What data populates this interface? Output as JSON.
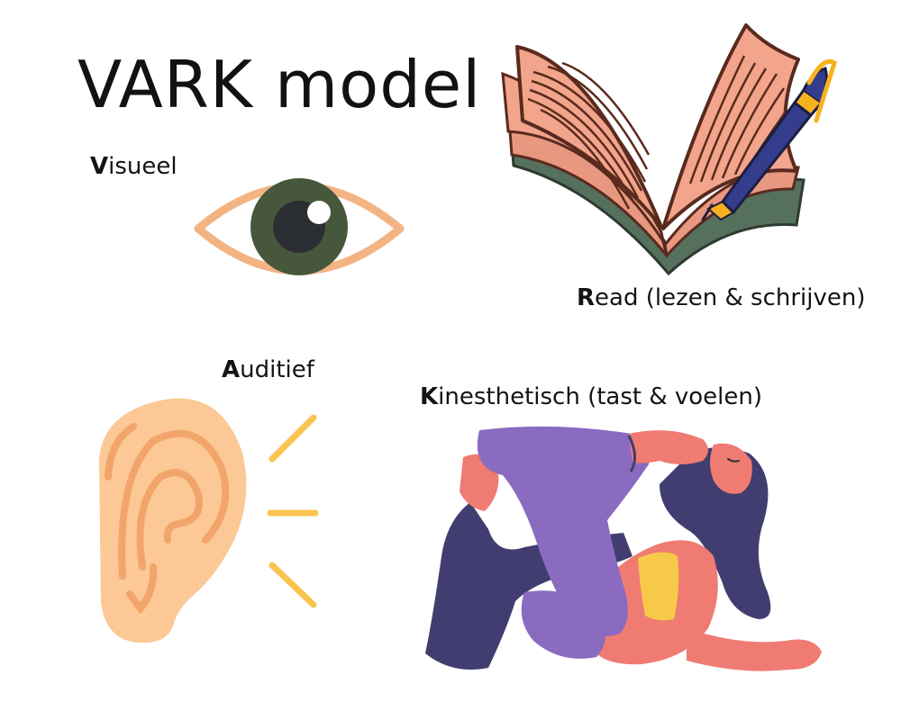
{
  "title": "VARK model",
  "categories": [
    {
      "key": "visual",
      "initial": "V",
      "rest": "isueel",
      "icon": "eye-icon"
    },
    {
      "key": "read",
      "initial": "R",
      "rest": "ead (lezen & schrijven)",
      "icon": "book-pen-icon"
    },
    {
      "key": "auditory",
      "initial": "A",
      "rest": "uditief",
      "icon": "ear-icon"
    },
    {
      "key": "kinesthetic",
      "initial": "K",
      "rest": "inesthetisch (tast & voelen)",
      "icon": "yoga-figure-icon"
    }
  ],
  "colors": {
    "eye_outline": "#f3b483",
    "iris": "#47573c",
    "pupil": "#2b2f33",
    "book_page": "#f2a58c",
    "book_line": "#5a2a1e",
    "book_cover": "#56705e",
    "pen_body": "#343c8c",
    "pen_accent": "#f7b21f",
    "ear_skin": "#fcc896",
    "ear_inner": "#f2a56a",
    "sound_waves": "#f9c44f",
    "yoga_purple": "#8a6bc0",
    "yoga_navy": "#413d70",
    "yoga_skin": "#f07b73",
    "yoga_top": "#f7c948"
  }
}
